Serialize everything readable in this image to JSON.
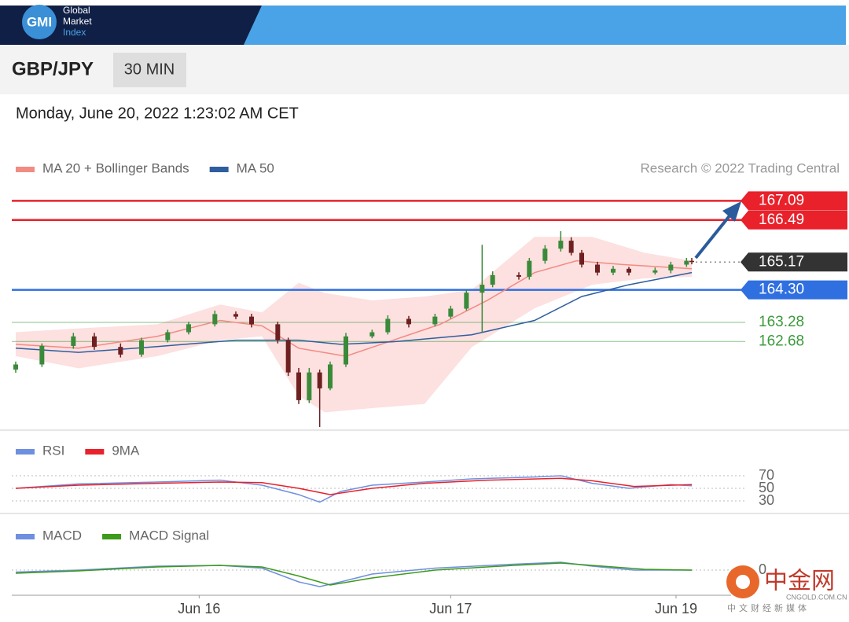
{
  "header": {
    "logo": "GMI",
    "brand": [
      "Global",
      "Market",
      "Index"
    ],
    "pair": "GBP/JPY",
    "timeframe": "30 MIN",
    "datetime": "Monday, June 20, 2022 1:23:02 AM CET"
  },
  "watermark": {
    "name": "中金网",
    "domain": "CNGOLD.COM.CN",
    "tagline": "中文财经新媒体"
  },
  "chart_data": [
    {
      "type": "candlestick",
      "source": "Research © 2022 Trading Central",
      "xlim": [
        0,
        129
      ],
      "ylim": [
        159.95,
        167.47
      ],
      "up_color": "#3a8a3a",
      "down_color": "#6e2020",
      "candles": {
        "x": [
          0,
          5,
          11,
          15,
          20,
          24,
          29,
          33,
          38,
          42,
          45,
          50,
          52,
          54,
          56,
          58,
          60,
          63,
          68,
          71,
          75,
          80,
          83,
          86,
          89,
          91,
          96,
          98,
          101,
          104,
          106,
          108,
          111,
          114,
          117,
          122,
          125,
          128,
          129
        ],
        "open": [
          161.8,
          161.96,
          162.54,
          162.84,
          162.51,
          162.27,
          162.72,
          162.97,
          163.22,
          163.54,
          163.46,
          163.22,
          162.72,
          161.71,
          160.84,
          161.71,
          161.21,
          161.96,
          162.84,
          162.97,
          163.39,
          163.22,
          163.46,
          163.71,
          164.21,
          164.46,
          164.76,
          164.71,
          165.21,
          165.59,
          165.84,
          165.46,
          165.09,
          164.84,
          164.96,
          164.84,
          164.91,
          165.09,
          165.21
        ],
        "high": [
          162.05,
          162.62,
          162.95,
          162.95,
          162.62,
          162.8,
          163.05,
          163.3,
          163.65,
          163.62,
          163.55,
          163.3,
          162.8,
          161.85,
          161.85,
          161.8,
          162.05,
          162.95,
          163.05,
          163.5,
          163.48,
          163.55,
          163.8,
          164.3,
          165.71,
          164.88,
          164.85,
          165.3,
          165.7,
          166.14,
          165.95,
          165.55,
          165.18,
          165.05,
          165.02,
          165.0,
          165.18,
          165.3,
          165.3
        ],
        "low": [
          161.7,
          161.88,
          162.45,
          162.42,
          162.18,
          162.2,
          162.65,
          162.9,
          163.15,
          163.38,
          163.12,
          162.62,
          161.6,
          160.72,
          160.75,
          160.0,
          161.15,
          161.88,
          162.78,
          162.9,
          163.12,
          163.15,
          163.4,
          163.65,
          162.96,
          164.38,
          164.62,
          164.62,
          165.12,
          165.5,
          165.38,
          165.0,
          164.75,
          164.76,
          164.75,
          164.78,
          164.82,
          165.02,
          165.1
        ],
        "close": [
          161.96,
          162.54,
          162.84,
          162.51,
          162.27,
          162.72,
          162.97,
          163.22,
          163.54,
          163.46,
          163.22,
          162.72,
          161.71,
          160.84,
          161.71,
          161.21,
          161.96,
          162.84,
          162.97,
          163.39,
          163.22,
          163.46,
          163.71,
          164.21,
          164.46,
          164.76,
          164.71,
          165.21,
          165.59,
          165.84,
          165.46,
          165.09,
          164.84,
          164.96,
          164.84,
          164.91,
          165.09,
          165.21,
          165.17
        ]
      },
      "series": [
        {
          "name": "MA 20 + Bollinger Bands",
          "color": "#f28b82",
          "band_color": "#fde0e0",
          "x": [
            0,
            12,
            27,
            39,
            47,
            54,
            63,
            72,
            81,
            90,
            99,
            107,
            116,
            129
          ],
          "values": [
            162.59,
            162.47,
            162.84,
            163.34,
            163.17,
            162.47,
            162.22,
            162.72,
            163.22,
            163.97,
            164.84,
            165.21,
            165.09,
            164.96
          ],
          "band_x": [
            0,
            12,
            27,
            39,
            47,
            54,
            59,
            68,
            78,
            87,
            99,
            110,
            120,
            129
          ],
          "upper": [
            162.97,
            163.09,
            163.22,
            163.84,
            163.59,
            164.52,
            164.2,
            163.97,
            164.09,
            164.3,
            165.96,
            165.96,
            165.46,
            165.21
          ],
          "lower": [
            162.22,
            161.84,
            162.22,
            162.72,
            162.84,
            160.97,
            160.46,
            160.59,
            160.72,
            162.5,
            163.72,
            164.46,
            164.66,
            164.71
          ]
        },
        {
          "name": "MA 50",
          "color": "#2f5e9e",
          "x": [
            0,
            12,
            27,
            42,
            54,
            62,
            72,
            87,
            99,
            108,
            117,
            129
          ],
          "values": [
            162.47,
            162.34,
            162.52,
            162.72,
            162.72,
            162.59,
            162.67,
            162.89,
            163.34,
            164.09,
            164.46,
            164.84
          ]
        }
      ],
      "levels": [
        {
          "value": 167.09,
          "color": "#e8212b",
          "boxed": true
        },
        {
          "value": 166.49,
          "color": "#e8212b",
          "boxed": true
        },
        {
          "value": 165.17,
          "color": "#333333",
          "boxed": true,
          "dotted": true
        },
        {
          "value": 164.3,
          "label": "164.30",
          "color": "#2f6fe0",
          "boxed": true
        },
        {
          "value": 163.28,
          "color": "#3c9a3c",
          "boxed": false
        },
        {
          "value": 162.68,
          "color": "#3c9a3c",
          "boxed": false
        }
      ]
    },
    {
      "type": "line",
      "xlim": [
        0,
        129
      ],
      "ylim": [
        20,
        82.5
      ],
      "yticks": [
        70,
        50,
        30
      ],
      "series": [
        {
          "name": "RSI",
          "color": "#6f8fe0",
          "x": [
            0,
            12,
            27,
            39,
            47,
            54,
            58,
            62,
            68,
            78,
            87,
            99,
            104,
            110,
            117,
            125,
            129
          ],
          "values": [
            50,
            57,
            60,
            63,
            55,
            40,
            28,
            45,
            55,
            60,
            65,
            68,
            70,
            58,
            50,
            56,
            54
          ]
        },
        {
          "name": "9MA",
          "color": "#e8212b",
          "x": [
            0,
            12,
            27,
            39,
            47,
            54,
            60,
            68,
            78,
            90,
            104,
            110,
            118,
            129
          ],
          "values": [
            50,
            55,
            58,
            60,
            59,
            50,
            40,
            50,
            58,
            63,
            66,
            62,
            53,
            56
          ]
        }
      ]
    },
    {
      "type": "line",
      "xlim": [
        0,
        129
      ],
      "ylim": [
        -0.6,
        0.5
      ],
      "yticks": [
        0
      ],
      "xticks": [
        {
          "value": 35,
          "label": "Jun 16"
        },
        {
          "value": 83,
          "label": "Jun 17"
        },
        {
          "value": 126,
          "label": "Jun 19"
        }
      ],
      "series": [
        {
          "name": "MACD",
          "color": "#6f8fe0",
          "x": [
            0,
            12,
            27,
            39,
            47,
            54,
            58,
            62,
            68,
            80,
            95,
            104,
            110,
            118,
            125,
            129
          ],
          "values": [
            -0.05,
            0,
            0.1,
            0.12,
            0.05,
            -0.3,
            -0.42,
            -0.3,
            -0.1,
            0.05,
            0.15,
            0.2,
            0.1,
            0,
            0,
            0
          ]
        },
        {
          "name": "MACD Signal",
          "color": "#3c9a1c",
          "x": [
            0,
            12,
            27,
            39,
            47,
            54,
            60,
            68,
            80,
            95,
            104,
            112,
            120,
            129
          ],
          "values": [
            -0.08,
            -0.02,
            0.08,
            0.12,
            0.08,
            -0.15,
            -0.38,
            -0.2,
            0,
            0.12,
            0.18,
            0.1,
            0.02,
            0
          ]
        }
      ]
    }
  ]
}
